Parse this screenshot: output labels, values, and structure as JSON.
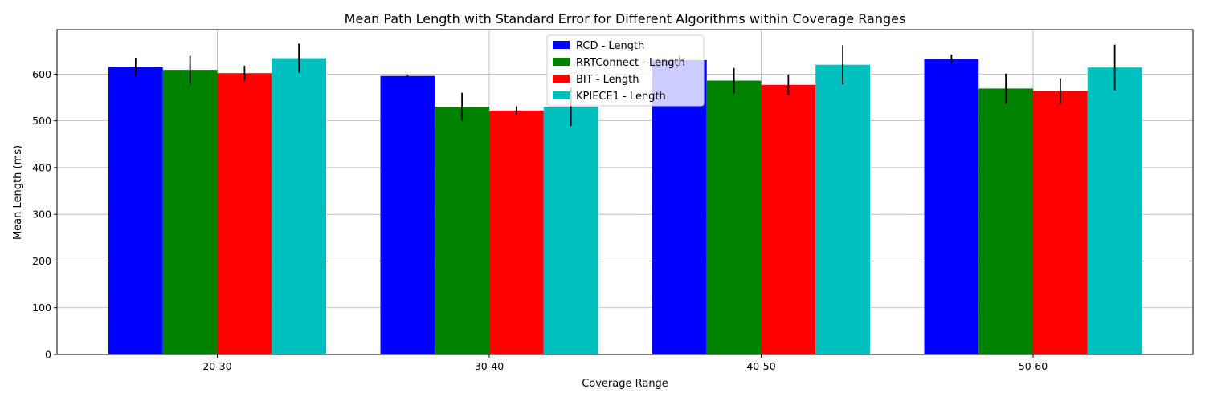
{
  "chart_data": {
    "type": "bar",
    "title": "Mean Path Length with Standard Error for Different Algorithms within Coverage Ranges",
    "xlabel": "Coverage Range",
    "ylabel": "Mean Length (ms)",
    "ylim": [
      0,
      695
    ],
    "yticks": [
      0,
      100,
      200,
      300,
      400,
      500,
      600
    ],
    "grid": true,
    "legend_position": "top-center",
    "categories": [
      "20-30",
      "30-40",
      "40-50",
      "50-60"
    ],
    "series": [
      {
        "name": "RCD - Length",
        "color": "#0000ff",
        "values": [
          615,
          596,
          630,
          632
        ],
        "errors": [
          20,
          2,
          10,
          10
        ]
      },
      {
        "name": "RRTConnect - Length",
        "color": "#008000",
        "values": [
          609,
          530,
          586,
          569
        ],
        "errors": [
          30,
          30,
          27,
          32
        ]
      },
      {
        "name": "BIT - Length",
        "color": "#ff0000",
        "values": [
          602,
          522,
          577,
          564
        ],
        "errors": [
          16,
          9,
          22,
          27
        ]
      },
      {
        "name": "KPIECE1 - Length",
        "color": "#00bfbf",
        "values": [
          634,
          530,
          620,
          614
        ],
        "errors": [
          31,
          41,
          42,
          49
        ]
      }
    ]
  }
}
